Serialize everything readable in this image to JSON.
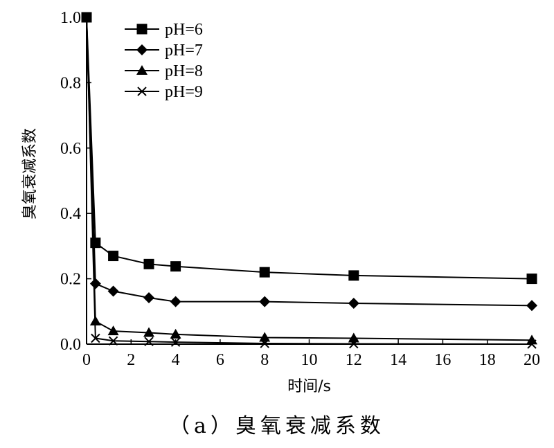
{
  "caption": "（a）臭氧衰减系数",
  "chart_data": {
    "type": "line",
    "title": "",
    "xlabel": "时间/s",
    "ylabel": "臭氧衰减系数",
    "xlim": [
      0,
      20
    ],
    "ylim": [
      0,
      1.0
    ],
    "xticks": [
      0,
      2,
      4,
      6,
      8,
      10,
      12,
      14,
      16,
      18,
      20
    ],
    "xtick_labels": [
      "0",
      "2",
      "4",
      "6",
      "8",
      "10",
      "12",
      "14",
      "16",
      "18",
      "20"
    ],
    "yticks": [
      0,
      0.2,
      0.4,
      0.6,
      0.8,
      1.0
    ],
    "ytick_labels": [
      "0.0",
      "0.2",
      "0.4",
      "0.6",
      "0.8",
      "1.0"
    ],
    "grid": false,
    "legend_position": "top-left",
    "series": [
      {
        "name": "pH=6",
        "marker": "square",
        "x": [
          0,
          0.4,
          1.2,
          2.8,
          4,
          8,
          12,
          20
        ],
        "y": [
          1.0,
          0.31,
          0.27,
          0.245,
          0.238,
          0.22,
          0.21,
          0.2
        ]
      },
      {
        "name": "pH=7",
        "marker": "diamond",
        "x": [
          0.4,
          1.2,
          2.8,
          4,
          8,
          12,
          20
        ],
        "y": [
          0.185,
          0.162,
          0.142,
          0.13,
          0.13,
          0.125,
          0.118
        ]
      },
      {
        "name": "pH=8",
        "marker": "triangle",
        "x": [
          0.4,
          1.2,
          2.8,
          4,
          8,
          12,
          20
        ],
        "y": [
          0.07,
          0.04,
          0.035,
          0.03,
          0.02,
          0.018,
          0.012
        ]
      },
      {
        "name": "pH=9",
        "marker": "x",
        "x": [
          0.4,
          1.2,
          2.8,
          4,
          8,
          12,
          20
        ],
        "y": [
          0.018,
          0.01,
          0.008,
          0.006,
          0.002,
          0.001,
          0.0
        ]
      }
    ]
  }
}
